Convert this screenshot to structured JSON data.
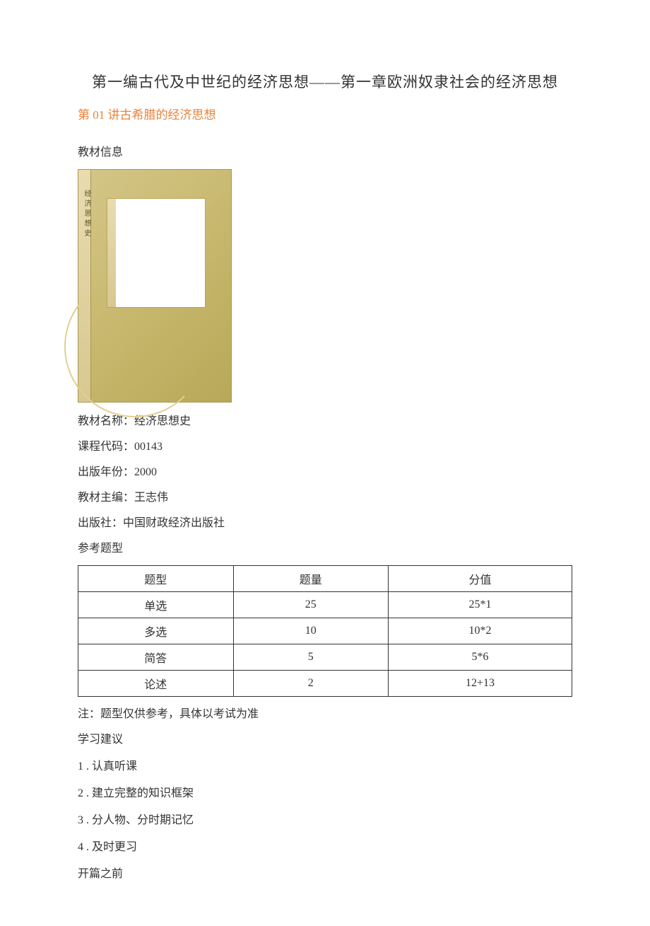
{
  "title": "第一编古代及中世纪的经济思想——第一章欧洲奴隶社会的经济思想",
  "section_heading": "第 01 讲古希腊的经济思想",
  "subsection_label": "教材信息",
  "book_cover": {
    "spine_text": "经济思想史",
    "background_gradient": [
      "#d4c688",
      "#c8b86e",
      "#b8a858"
    ]
  },
  "textbook_info": {
    "name_label": "教材名称：",
    "name_value": "经济思想史",
    "code_label": "课程代码：",
    "code_value": "00143",
    "year_label": "出版年份：",
    "year_value": "2000",
    "editor_label": "教材主编：",
    "editor_value": "王志伟",
    "publisher_label": "出版社：",
    "publisher_value": "中国财政经济出版社"
  },
  "question_types_label": "参考题型",
  "table": {
    "headers": [
      "题型",
      "题量",
      "分值"
    ],
    "rows": [
      [
        "单选",
        "25",
        "25*1"
      ],
      [
        "多选",
        "10",
        "10*2"
      ],
      [
        "简答",
        "5",
        "5*6"
      ],
      [
        "论述",
        "2",
        "12+13"
      ]
    ]
  },
  "note": "注：题型仅供参考，具体以考试为准",
  "study_advice_label": "学习建议",
  "study_advice": [
    "1 . 认真听课",
    "2   . 建立完整的知识框架",
    "3   . 分人物、分时期记忆",
    "4   . 及时更习"
  ],
  "before_start_label": "开篇之前"
}
